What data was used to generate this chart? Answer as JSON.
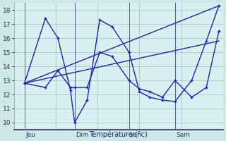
{
  "background_color": "#cce8e8",
  "plot_bg": "#d8f0f0",
  "grid_color": "#a8c8c8",
  "line_color": "#2222aa",
  "ylim": [
    9.5,
    18.5
  ],
  "yticks": [
    10,
    11,
    12,
    13,
    14,
    15,
    16,
    17,
    18
  ],
  "xlabel": "Température (°c)",
  "day_labels": [
    "Jeu",
    "Dim",
    "Ven",
    "Sam"
  ],
  "xlim": [
    0,
    100
  ],
  "day_positions": [
    5,
    29,
    55,
    77
  ],
  "series1_x": [
    5,
    15,
    21,
    27,
    29,
    35,
    41,
    47,
    55,
    60,
    65,
    71,
    77,
    85,
    92,
    98
  ],
  "series1_y": [
    12.8,
    17.4,
    16.0,
    12.3,
    10.0,
    11.6,
    17.3,
    16.8,
    15.0,
    12.2,
    11.8,
    11.6,
    11.5,
    13.0,
    15.8,
    18.3
  ],
  "series2_x": [
    5,
    15,
    21,
    27,
    29,
    35,
    41,
    47,
    55,
    60,
    65,
    71,
    77,
    85,
    92,
    98
  ],
  "series2_y": [
    12.8,
    12.5,
    13.7,
    12.5,
    12.5,
    12.5,
    15.0,
    14.7,
    13.0,
    12.4,
    12.2,
    11.8,
    13.0,
    11.8,
    12.5,
    16.5
  ],
  "trend1_x": [
    5,
    98
  ],
  "trend1_y": [
    12.8,
    18.3
  ],
  "trend2_x": [
    5,
    98
  ],
  "trend2_y": [
    12.8,
    15.8
  ]
}
